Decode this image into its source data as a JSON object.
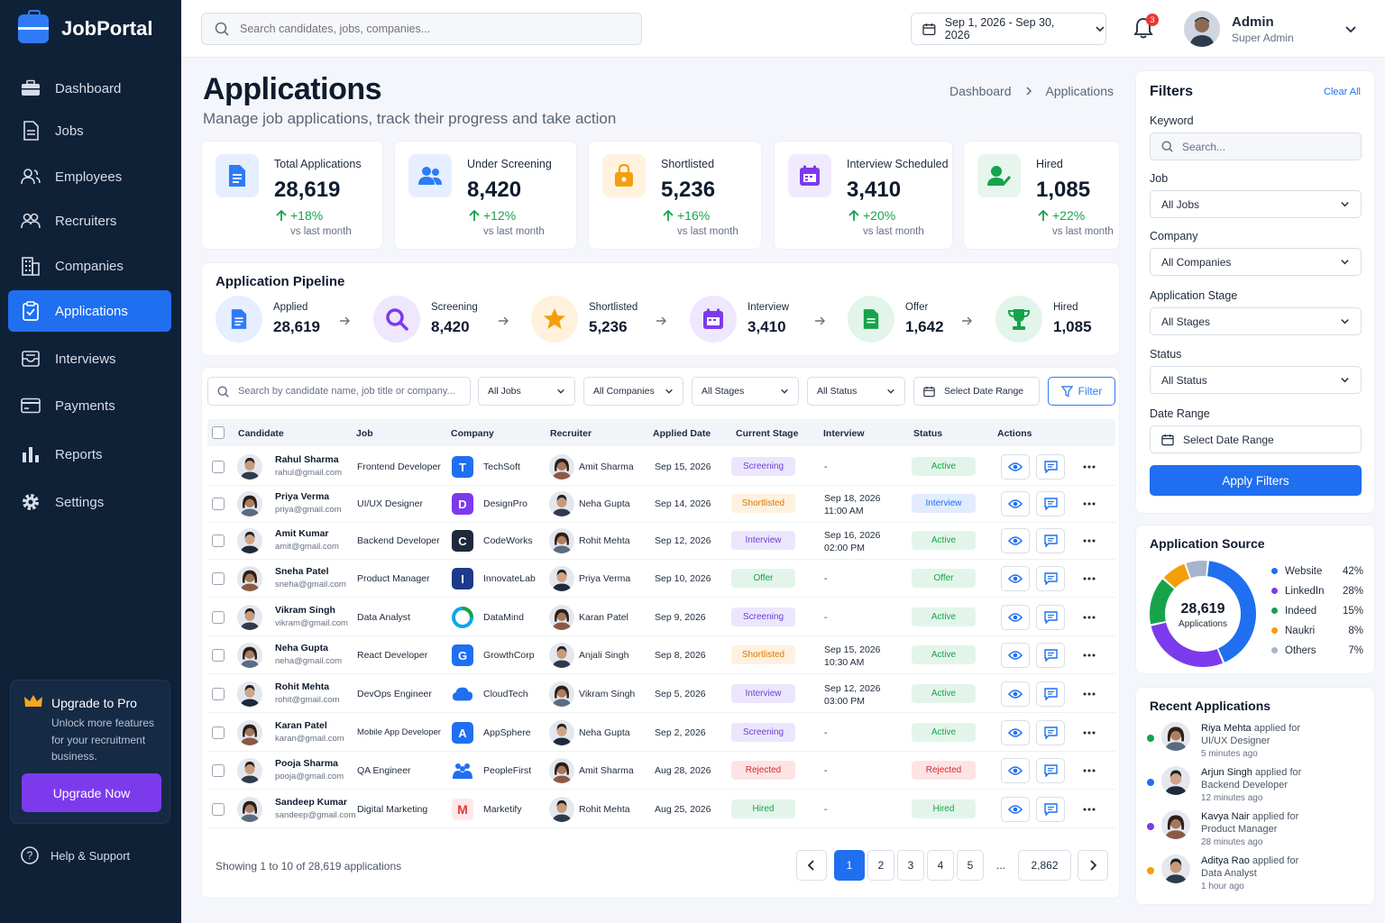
{
  "app": {
    "name": "JobPortal"
  },
  "sidebar": {
    "items": [
      {
        "label": "Dashboard",
        "icon": "briefcase-icon"
      },
      {
        "label": "Jobs",
        "icon": "document-icon"
      },
      {
        "label": "Employees",
        "icon": "users-icon"
      },
      {
        "label": "Recruiters",
        "icon": "user-group-icon"
      },
      {
        "label": "Companies",
        "icon": "building-icon"
      },
      {
        "label": "Applications",
        "icon": "clipboard-check-icon",
        "active": true
      },
      {
        "label": "Interviews",
        "icon": "inbox-icon"
      },
      {
        "label": "Payments",
        "icon": "credit-card-icon"
      },
      {
        "label": "Reports",
        "icon": "bar-chart-icon"
      },
      {
        "label": "Settings",
        "icon": "gear-icon"
      }
    ],
    "promo": {
      "title": "Upgrade to Pro",
      "text": "Unlock more features for your recruitment business.",
      "button": "Upgrade Now"
    },
    "help": "Help & Support"
  },
  "topbar": {
    "search_placeholder": "Search candidates, jobs, companies...",
    "date_range": "Sep 1, 2026 - Sep 30, 2026",
    "notifications": "3",
    "user_name": "Admin",
    "user_role": "Super Admin"
  },
  "page": {
    "title": "Applications",
    "subtitle": "Manage job applications, track their progress and take action",
    "breadcrumb": [
      "Dashboard",
      "Applications"
    ]
  },
  "stats": [
    {
      "label": "Total Applications",
      "value": "28,619",
      "change": "+18%",
      "vs": "vs last month",
      "color": "#2f7bf5",
      "bg": "#e6efff"
    },
    {
      "label": "Under Screening",
      "value": "8,420",
      "change": "+12%",
      "vs": "vs last month",
      "color": "#2f7bf5",
      "bg": "#e6efff"
    },
    {
      "label": "Shortlisted",
      "value": "5,236",
      "change": "+16%",
      "vs": "vs last month",
      "color": "#f59e0b",
      "bg": "#fff3e0"
    },
    {
      "label": "Interview Scheduled",
      "value": "3,410",
      "change": "+20%",
      "vs": "vs last month",
      "color": "#7c3aed",
      "bg": "#f1eafe"
    },
    {
      "label": "Hired",
      "value": "1,085",
      "change": "+22%",
      "vs": "vs last month",
      "color": "#16a34a",
      "bg": "#e6f6ec"
    }
  ],
  "pipeline": {
    "title": "Application Pipeline",
    "stages": [
      {
        "label": "Applied",
        "value": "28,619",
        "color": "#2f7bf5",
        "bg": "#e6efff"
      },
      {
        "label": "Screening",
        "value": "8,420",
        "color": "#7c3aed",
        "bg": "#efe7fd"
      },
      {
        "label": "Shortlisted",
        "value": "5,236",
        "color": "#f59e0b",
        "bg": "#fff1dc"
      },
      {
        "label": "Interview",
        "value": "3,410",
        "color": "#7c3aed",
        "bg": "#efe7fd"
      },
      {
        "label": "Offer",
        "value": "1,642",
        "color": "#16a34a",
        "bg": "#e3f5ea"
      },
      {
        "label": "Hired",
        "value": "1,085",
        "color": "#16a34a",
        "bg": "#e3f5ea"
      }
    ]
  },
  "table": {
    "search_placeholder": "Search by candidate name, job title or company...",
    "filters": {
      "jobs": "All Jobs",
      "companies": "All Companies",
      "stages": "All Stages",
      "status": "All Status",
      "date": "Select Date Range",
      "button": "Filter"
    },
    "headers": [
      "Candidate",
      "Job",
      "Company",
      "Recruiter",
      "Applied Date",
      "Current Stage",
      "Interview",
      "Status",
      "Actions"
    ],
    "rows": [
      {
        "name": "Rahul Sharma",
        "email": "rahul@gmail.com",
        "job": "Frontend Developer",
        "company": "TechSoft",
        "logo": "T",
        "logo_color": "#1f6ff0",
        "recruiter": "Amit Sharma",
        "date": "Sep 15, 2026",
        "stage": "Screening",
        "interview": "-",
        "interview_time": "",
        "status": "Active"
      },
      {
        "name": "Priya Verma",
        "email": "priya@gmail.com",
        "job": "UI/UX Designer",
        "company": "DesignPro",
        "logo": "D",
        "logo_color": "#7c3aed",
        "recruiter": "Neha Gupta",
        "date": "Sep 14, 2026",
        "stage": "Shortlisted",
        "interview": "Sep 18, 2026",
        "interview_time": "11:00 AM",
        "status": "Interview"
      },
      {
        "name": "Amit Kumar",
        "email": "amit@gmail.com",
        "job": "Backend Developer",
        "company": "CodeWorks",
        "logo": "C",
        "logo_color": "#1e2a3b",
        "recruiter": "Rohit Mehta",
        "date": "Sep 12, 2026",
        "stage": "Interview",
        "interview": "Sep 16, 2026",
        "interview_time": "02:00 PM",
        "status": "Active"
      },
      {
        "name": "Sneha Patel",
        "email": "sneha@gmail.com",
        "job": "Product Manager",
        "company": "InnovateLab",
        "logo": "I",
        "logo_color": "#1e3a8a",
        "recruiter": "Priya Verma",
        "date": "Sep 10, 2026",
        "stage": "Offer",
        "interview": "-",
        "interview_time": "",
        "status": "Offer"
      },
      {
        "name": "Vikram Singh",
        "email": "vikram@gmail.com",
        "job": "Data Analyst",
        "company": "DataMind",
        "logo": "",
        "logo_color": "#0ea5e9",
        "recruiter": "Karan Patel",
        "date": "Sep 9, 2026",
        "stage": "Screening",
        "interview": "-",
        "interview_time": "",
        "status": "Active"
      },
      {
        "name": "Neha Gupta",
        "email": "neha@gmail.com",
        "job": "React Developer",
        "company": "GrowthCorp",
        "logo": "G",
        "logo_color": "#1f6ff0",
        "recruiter": "Anjali Singh",
        "date": "Sep 8, 2026",
        "stage": "Shortlisted",
        "interview": "Sep 15, 2026",
        "interview_time": "10:30 AM",
        "status": "Active"
      },
      {
        "name": "Rohit Mehta",
        "email": "rohit@gmail.com",
        "job": "DevOps Engineer",
        "company": "CloudTech",
        "logo": "",
        "logo_color": "#1f6ff0",
        "recruiter": "Vikram Singh",
        "date": "Sep 5, 2026",
        "stage": "Interview",
        "interview": "Sep 12, 2026",
        "interview_time": "03:00 PM",
        "status": "Active"
      },
      {
        "name": "Karan Patel",
        "email": "karan@gmail.com",
        "job": "Mobile App Developer",
        "company": "AppSphere",
        "logo": "A",
        "logo_color": "#1f6ff0",
        "recruiter": "Neha Gupta",
        "date": "Sep 2, 2026",
        "stage": "Screening",
        "interview": "-",
        "interview_time": "",
        "status": "Active"
      },
      {
        "name": "Pooja Sharma",
        "email": "pooja@gmail.com",
        "job": "QA Engineer",
        "company": "PeopleFirst",
        "logo": "",
        "logo_color": "#1f6ff0",
        "recruiter": "Amit Sharma",
        "date": "Aug 28, 2026",
        "stage": "Rejected",
        "interview": "-",
        "interview_time": "",
        "status": "Rejected"
      },
      {
        "name": "Sandeep Kumar",
        "email": "sandeep@gmail.com",
        "job": "Digital Marketing",
        "company": "Marketify",
        "logo": "M",
        "logo_color": "#fde8e8",
        "recruiter": "Rohit Mehta",
        "date": "Aug 25, 2026",
        "stage": "Hired",
        "interview": "-",
        "interview_time": "",
        "status": "Hired"
      }
    ],
    "footer": "Showing 1 to 10 of 28,619 applications",
    "pages": [
      "1",
      "2",
      "3",
      "4",
      "5",
      "...",
      "2,862"
    ]
  },
  "filters": {
    "title": "Filters",
    "clear": "Clear All",
    "keyword_label": "Keyword",
    "keyword_placeholder": "Search...",
    "job_label": "Job",
    "job_value": "All Jobs",
    "company_label": "Company",
    "company_value": "All Companies",
    "stage_label": "Application Stage",
    "stage_value": "All Stages",
    "status_label": "Status",
    "status_value": "All Status",
    "date_label": "Date Range",
    "date_value": "Select Date Range",
    "apply": "Apply Filters"
  },
  "source": {
    "title": "Application Source",
    "total": "28,619",
    "total_label": "Applications",
    "items": [
      {
        "name": "Website",
        "pct": "42%",
        "value": 42,
        "color": "#1f6ff0"
      },
      {
        "name": "LinkedIn",
        "pct": "28%",
        "value": 28,
        "color": "#7c3aed"
      },
      {
        "name": "Indeed",
        "pct": "15%",
        "value": 15,
        "color": "#16a34a"
      },
      {
        "name": "Naukri",
        "pct": "8%",
        "value": 8,
        "color": "#f59e0b"
      },
      {
        "name": "Others",
        "pct": "7%",
        "value": 7,
        "color": "#a5b4cb"
      }
    ]
  },
  "recent": {
    "title": "Recent Applications",
    "items": [
      {
        "name": "Riya Mehta",
        "text": "applied for",
        "job": "UI/UX Designer",
        "time": "5 minutes ago",
        "color": "#16a34a"
      },
      {
        "name": "Arjun Singh",
        "text": "applied for",
        "job": "Backend Developer",
        "time": "12 minutes ago",
        "color": "#1f6ff0"
      },
      {
        "name": "Kavya Nair",
        "text": "applied for",
        "job": "Product Manager",
        "time": "28 minutes ago",
        "color": "#7c3aed"
      },
      {
        "name": "Aditya Rao",
        "text": "applied for",
        "job": "Data Analyst",
        "time": "1 hour ago",
        "color": "#f59e0b"
      }
    ]
  }
}
